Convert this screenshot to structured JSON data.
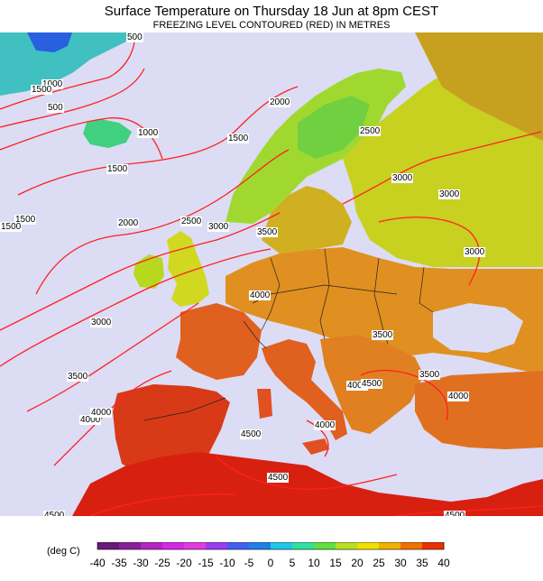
{
  "header": {
    "title": "Surface Temperature on Thursday 18 Jun at 8pm CEST",
    "subtitle": "FREEZING LEVEL CONTOURED (RED) IN METRES"
  },
  "colors": {
    "sea": "#dcdcf4",
    "contour": "#ff2020",
    "border": "#222222"
  },
  "contour_labels": [
    "500",
    "1000",
    "1500",
    "1500",
    "500",
    "1000",
    "1500",
    "1500",
    "2000",
    "2000",
    "2500",
    "2500",
    "3000",
    "3000",
    "3000",
    "3000",
    "3500",
    "3500",
    "3500",
    "3500",
    "4000",
    "4000",
    "4000",
    "4000",
    "4000",
    "4500",
    "4500",
    "4500",
    "4500",
    "4500",
    "3000",
    "1500",
    "4000"
  ],
  "legend": {
    "unit_label": "(deg C)",
    "ticks": [
      "-40",
      "-35",
      "-30",
      "-25",
      "-20",
      "-15",
      "-10",
      "-5",
      "0",
      "5",
      "10",
      "15",
      "20",
      "25",
      "30",
      "35",
      "40"
    ],
    "colors": [
      "#6a1a7a",
      "#8a1e9a",
      "#b424c4",
      "#d42ae4",
      "#e03ae0",
      "#9a3cf0",
      "#4060f0",
      "#2080e8",
      "#20c8e8",
      "#30e0a0",
      "#60e040",
      "#b8e020",
      "#f0e000",
      "#f0b000",
      "#f07000",
      "#e83000",
      "#d00000"
    ]
  }
}
